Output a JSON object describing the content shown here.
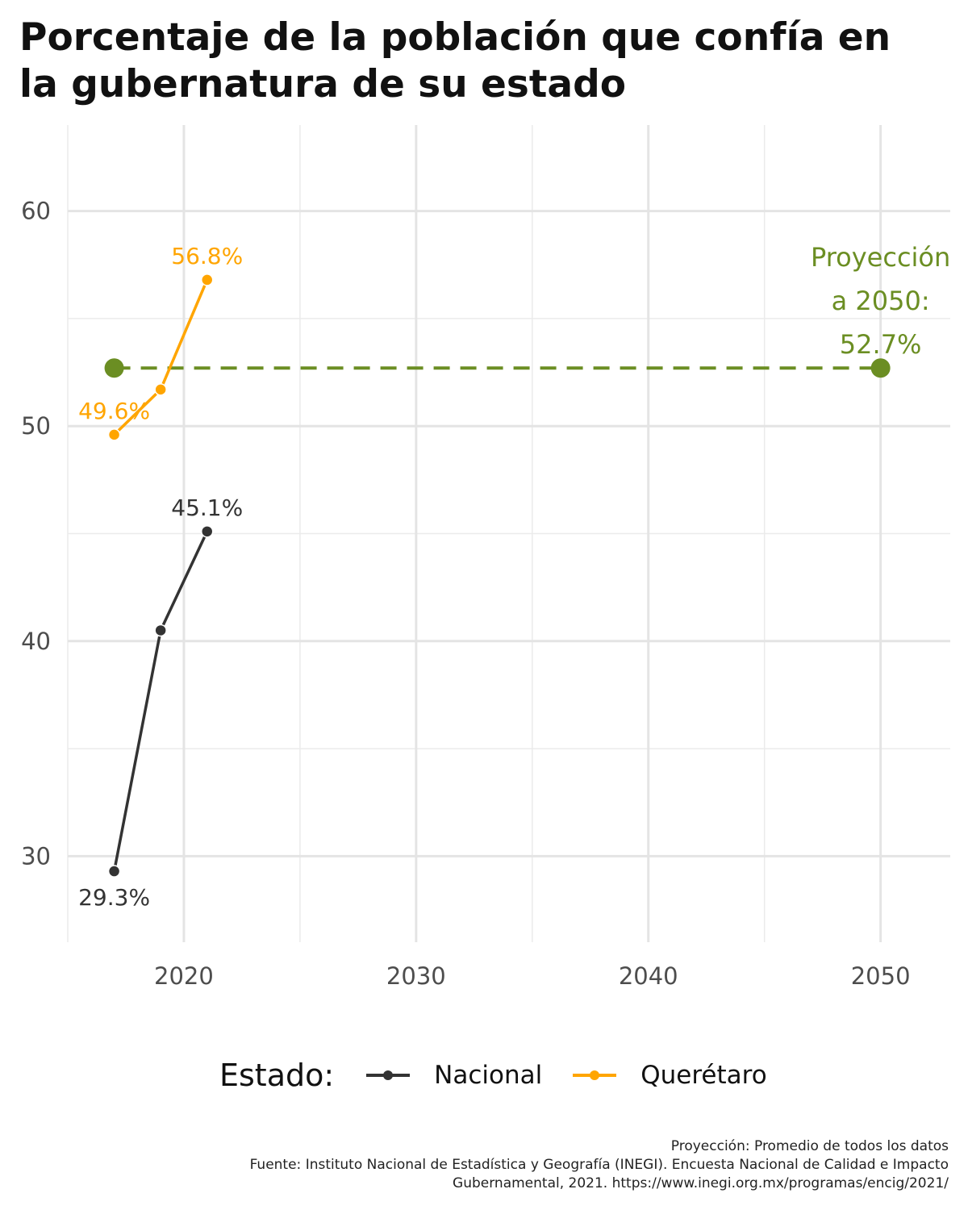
{
  "title_lines": [
    "Porcentaje de la población que confía en",
    "la gubernatura de su estado"
  ],
  "legend": {
    "title": "Estado:",
    "items": [
      {
        "label": "Nacional",
        "color": "#333333"
      },
      {
        "label": "Querétaro",
        "color": "#ffa500"
      }
    ]
  },
  "caption_lines": [
    "Proyección: Promedio de todos los datos",
    "Fuente: Instituto Nacional de Estadística y Geografía (INEGI). Encuesta Nacional de Calidad e Impacto",
    "Gubernamental, 2021. https://www.inegi.org.mx/programas/encig/2021/"
  ],
  "chart_data": {
    "type": "line",
    "title": "Porcentaje de la población que confía en la gubernatura de su estado",
    "xlabel": "",
    "ylabel": "",
    "xlim": [
      2015,
      2053
    ],
    "ylim": [
      26,
      64
    ],
    "x_ticks": [
      2020,
      2030,
      2040,
      2050
    ],
    "y_ticks": [
      30,
      40,
      50,
      60
    ],
    "grid": true,
    "legend_position": "bottom",
    "series": [
      {
        "name": "Nacional",
        "color": "#333333",
        "x": [
          2017,
          2019,
          2021
        ],
        "y": [
          29.3,
          40.5,
          45.1
        ],
        "labels": [
          {
            "index": 0,
            "text": "29.3%",
            "placement": "below"
          },
          {
            "index": 2,
            "text": "45.1%",
            "placement": "above"
          }
        ]
      },
      {
        "name": "Querétaro",
        "color": "#ffa500",
        "x": [
          2017,
          2019,
          2021
        ],
        "y": [
          49.6,
          51.7,
          56.8
        ],
        "labels": [
          {
            "index": 0,
            "text": "49.6%",
            "placement": "above"
          },
          {
            "index": 2,
            "text": "56.8%",
            "placement": "above"
          }
        ]
      }
    ],
    "projection": {
      "x": [
        2017,
        2050
      ],
      "y": 52.7,
      "color": "#6b8e23",
      "style": "dashed",
      "annotation": [
        "Proyección",
        "a 2050:",
        "52.7%"
      ]
    }
  }
}
